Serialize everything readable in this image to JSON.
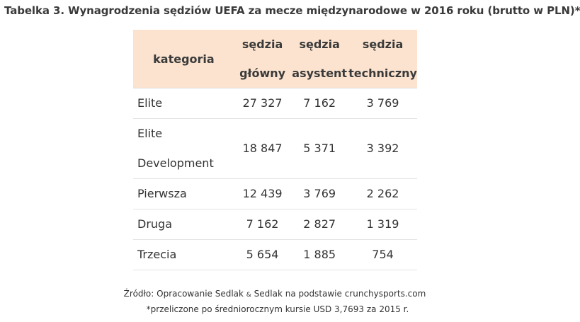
{
  "title": "Tabelka 3. Wynagrodzenia sędziów UEFA za mecze międzynarodowe w 2016 roku (brutto w PLN)*",
  "table": {
    "headers": {
      "category": "kategoria",
      "main_line1": "sędzia",
      "main_line2": "główny",
      "assistant_line1": "sędzia",
      "assistant_line2": "asystent",
      "technical_line1": "sędzia",
      "technical_line2": "techniczny"
    },
    "rows": [
      {
        "category_line1": "Elite",
        "category_line2": "",
        "main": "27 327",
        "assistant": "7 162",
        "technical": "3 769"
      },
      {
        "category_line1": "Elite",
        "category_line2": "Development",
        "main": "18 847",
        "assistant": "5 371",
        "technical": "3 392"
      },
      {
        "category_line1": "Pierwsza",
        "category_line2": "",
        "main": "12 439",
        "assistant": "3 769",
        "technical": "2 262"
      },
      {
        "category_line1": "Druga",
        "category_line2": "",
        "main": "7 162",
        "assistant": "2 827",
        "technical": "1 319"
      },
      {
        "category_line1": "Trzecia",
        "category_line2": "",
        "main": "5 654",
        "assistant": "1 885",
        "technical": "754"
      }
    ]
  },
  "footer": {
    "source_prefix": "Źródło: Opracowanie Sedlak ",
    "source_amp": "&",
    "source_suffix": " Sedlak na podstawie crunchysports.com",
    "note": "*przeliczone po średniorocznym kursie USD 3,7693 za 2015 r."
  },
  "colors": {
    "header_bg": "#fbe3cf",
    "row_border": "#e4e4e4"
  }
}
